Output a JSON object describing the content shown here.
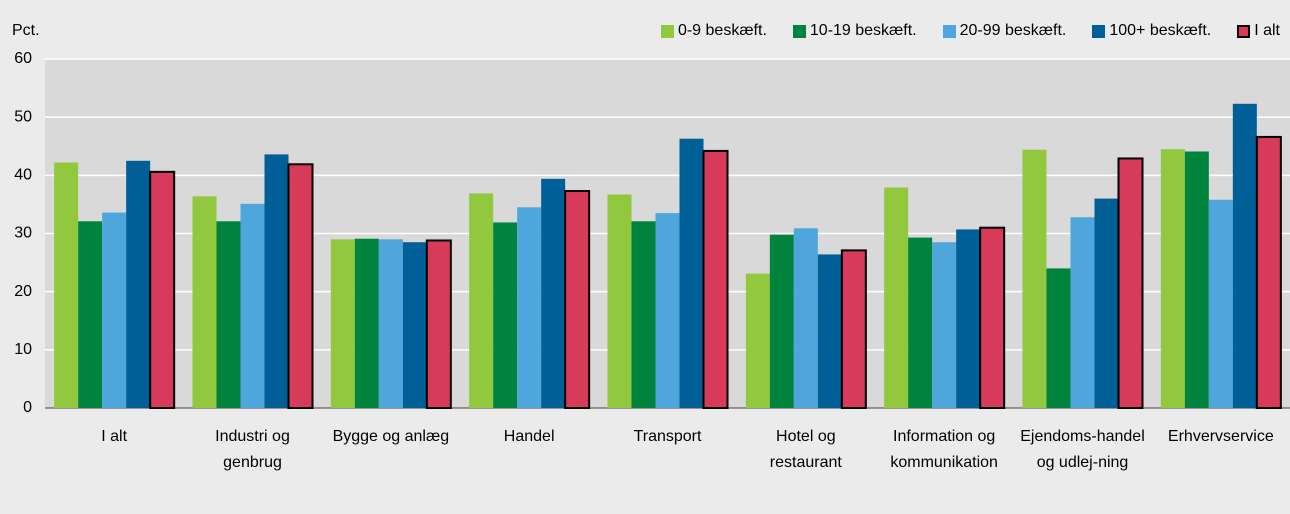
{
  "chart_data": {
    "type": "bar",
    "ylabel": "Pct.",
    "categories": [
      "I alt",
      "Industri og genbrug",
      "Bygge og anlæg",
      "Handel",
      "Transport",
      "Hotel og restaurant",
      "Information og kommunikation",
      "Ejendoms-handel og udlej-ning",
      "Erhvervservice"
    ],
    "series": [
      {
        "name": "0-9 beskæft.",
        "color": "#92c83e",
        "values": [
          42.2,
          36.4,
          29.0,
          36.9,
          36.7,
          23.1,
          37.9,
          44.4,
          44.5
        ]
      },
      {
        "name": "10-19 beskæft.",
        "color": "#00843d",
        "values": [
          32.1,
          32.1,
          29.1,
          31.9,
          32.1,
          29.8,
          29.3,
          24.0,
          44.1
        ]
      },
      {
        "name": "20-99 beskæft.",
        "color": "#4ea6dc",
        "values": [
          33.6,
          35.1,
          29.0,
          34.5,
          33.5,
          30.9,
          28.5,
          32.8,
          35.8
        ]
      },
      {
        "name": "100+ beskæft.",
        "color": "#005f96",
        "values": [
          42.5,
          43.6,
          28.5,
          39.4,
          46.3,
          26.4,
          30.7,
          36.0,
          52.3
        ]
      },
      {
        "name": "I alt",
        "color": "#d83a5a",
        "edgecolor": "#000000",
        "values": [
          40.6,
          41.9,
          28.8,
          37.3,
          44.2,
          27.1,
          31.0,
          42.9,
          46.6
        ]
      }
    ],
    "ylim": [
      0,
      60
    ],
    "yticks": [
      0,
      10,
      20,
      30,
      40,
      50,
      60
    ],
    "grid": true,
    "legend": "top-right"
  }
}
